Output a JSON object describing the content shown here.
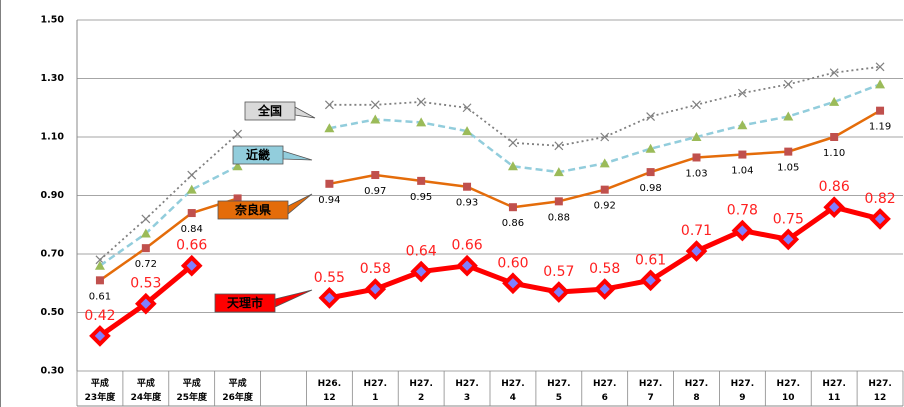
{
  "chart_data": {
    "type": "line",
    "categories": [
      "平成\n23年度",
      "平成\n24年度",
      "平成\n25年度",
      "平成\n26年度",
      null,
      "H26.\n12",
      "H27.\n1",
      "H27.\n2",
      "H27.\n3",
      "H27.\n4",
      "H27.\n5",
      "H27.\n6",
      "H27.\n7",
      "H27.\n8",
      "H27.\n9",
      "H27.\n10",
      "H27.\n11",
      "H27.\n12"
    ],
    "series": [
      {
        "name": "全国",
        "color": "#808080",
        "values": [
          0.68,
          0.82,
          0.97,
          1.11,
          null,
          1.21,
          1.21,
          1.22,
          1.2,
          1.08,
          1.07,
          1.1,
          1.17,
          1.21,
          1.25,
          1.28,
          1.32,
          1.34
        ]
      },
      {
        "name": "近畿",
        "color": "#92cddc",
        "values": [
          0.66,
          0.77,
          0.92,
          1.0,
          null,
          1.13,
          1.16,
          1.15,
          1.12,
          1.0,
          0.98,
          1.01,
          1.06,
          1.1,
          1.14,
          1.17,
          1.22,
          1.28
        ]
      },
      {
        "name": "奈良県",
        "color": "#e46c0a",
        "values": [
          0.61,
          0.72,
          0.84,
          0.89,
          null,
          0.94,
          0.97,
          0.95,
          0.93,
          0.86,
          0.88,
          0.92,
          0.98,
          1.03,
          1.04,
          1.05,
          1.1,
          1.19
        ],
        "value_labels": [
          "0.61",
          "0.72",
          "0.84",
          null,
          null,
          "0.94",
          "0.97",
          "0.95",
          "0.93",
          "0.86",
          "0.88",
          "0.92",
          "0.98",
          "1.03",
          "1.04",
          "1.05",
          "1.10",
          "1.19"
        ]
      },
      {
        "name": "天理市",
        "color": "#ff0000",
        "values": [
          0.42,
          0.53,
          0.66,
          null,
          null,
          0.55,
          0.58,
          0.64,
          0.66,
          0.6,
          0.57,
          0.58,
          0.61,
          0.71,
          0.78,
          0.75,
          0.86,
          0.82
        ],
        "value_labels": [
          "0.42",
          "0.53",
          "0.66",
          null,
          null,
          "0.55",
          "0.58",
          "0.64",
          "0.66",
          "0.60",
          "0.57",
          "0.58",
          "0.61",
          "0.71",
          "0.78",
          "0.75",
          "0.86",
          "0.82"
        ]
      }
    ],
    "ylim": [
      0.3,
      1.5
    ],
    "yticks": [
      {
        "value": 0.3,
        "label": "0.30"
      },
      {
        "value": 0.5,
        "label": "0.50"
      },
      {
        "value": 0.7,
        "label": "0.70"
      },
      {
        "value": 0.9,
        "label": "0.90"
      },
      {
        "value": 1.1,
        "label": "1.10"
      },
      {
        "value": 1.3,
        "label": "1.30"
      },
      {
        "value": 1.5,
        "label": "1.50"
      }
    ],
    "grid": true
  }
}
